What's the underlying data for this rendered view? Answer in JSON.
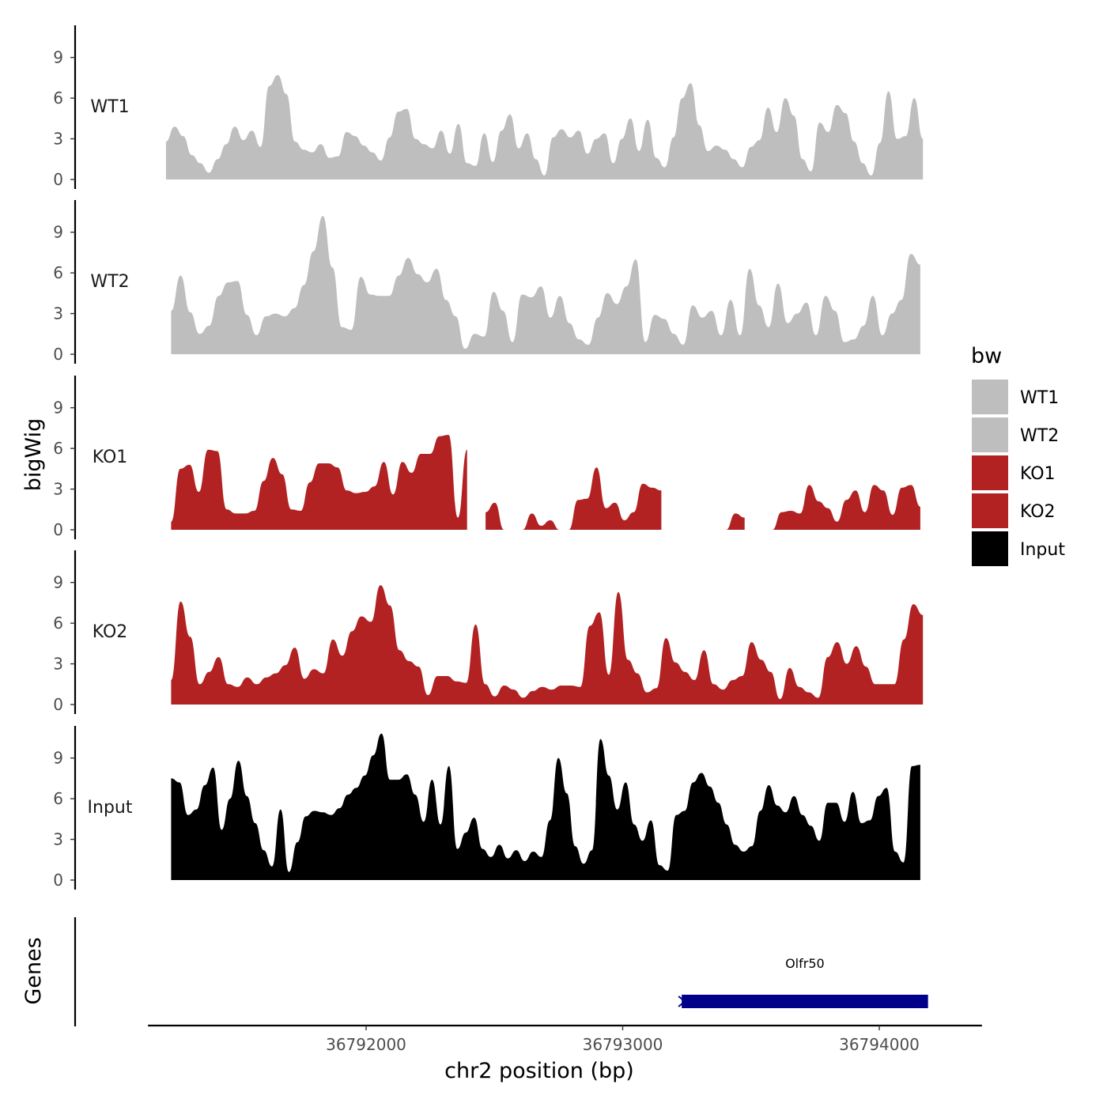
{
  "chart_data": {
    "type": "area",
    "x_axis": {
      "label": "chr2 position (bp)",
      "range": [
        36791150,
        36794400
      ],
      "ticks": [
        {
          "value": 36792000,
          "label": "36792000"
        },
        {
          "value": 36793000,
          "label": "36793000"
        },
        {
          "value": 36794000,
          "label": "36794000"
        }
      ]
    },
    "y_axis": {
      "label": "bigWig",
      "range": [
        0,
        11.5
      ],
      "ticks": [
        {
          "value": 0,
          "label": "0"
        },
        {
          "value": 3,
          "label": "3"
        },
        {
          "value": 6,
          "label": "6"
        },
        {
          "value": 9,
          "label": "9"
        }
      ]
    },
    "genes_panel_label": "Genes",
    "legend": {
      "title": "bw",
      "items": [
        {
          "label": "WT1",
          "color": "#bebebe"
        },
        {
          "label": "WT2",
          "color": "#bebebe"
        },
        {
          "label": "KO1",
          "color": "#b22222"
        },
        {
          "label": "KO2",
          "color": "#b22222"
        },
        {
          "label": "Input",
          "color": "#000000"
        }
      ]
    },
    "series": [
      {
        "name": "WT1",
        "color": "#bebebe",
        "x_start": 36791220,
        "x_end": 36794170,
        "values": [
          2.8,
          3.9,
          3.2,
          1.8,
          1.2,
          0.5,
          1.5,
          2.6,
          3.9,
          2.9,
          3.6,
          2.4,
          6.9,
          7.7,
          6.3,
          2.8,
          2.2,
          2.0,
          2.6,
          1.6,
          1.7,
          3.5,
          3.2,
          2.5,
          2.0,
          1.4,
          3.1,
          5.0,
          5.2,
          3.0,
          2.6,
          2.3,
          3.6,
          1.9,
          4.1,
          1.2,
          1.0,
          3.4,
          1.3,
          3.6,
          4.8,
          2.3,
          3.4,
          1.5,
          0.3,
          3.1,
          3.7,
          3.1,
          3.6,
          1.9,
          3.0,
          3.4,
          1.2,
          3.0,
          4.5,
          2.1,
          4.4,
          1.6,
          0.9,
          3.1,
          6.0,
          7.1,
          4.0,
          2.1,
          2.5,
          2.2,
          1.5,
          0.9,
          2.4,
          2.9,
          5.3,
          3.5,
          6.0,
          4.7,
          1.5,
          0.6,
          4.2,
          3.5,
          5.5,
          4.9,
          2.8,
          1.2,
          0.3,
          2.7,
          6.5,
          3.0,
          3.2,
          6.0,
          3.0
        ],
        "gaps": []
      },
      {
        "name": "WT2",
        "color": "#bebebe",
        "x_start": 36791240,
        "x_end": 36794160,
        "values": [
          3.2,
          5.8,
          3.1,
          1.5,
          2.1,
          4.3,
          5.3,
          5.4,
          2.9,
          1.4,
          2.8,
          3.0,
          2.8,
          3.4,
          5.1,
          7.6,
          10.2,
          6.4,
          2.0,
          1.8,
          5.7,
          4.4,
          4.3,
          4.3,
          5.8,
          7.1,
          5.9,
          5.3,
          6.3,
          4.0,
          2.8,
          0.4,
          1.5,
          1.3,
          4.6,
          3.2,
          0.9,
          4.4,
          4.2,
          5.0,
          2.7,
          4.3,
          2.3,
          1.1,
          0.7,
          2.7,
          4.5,
          3.7,
          5.0,
          7.0,
          0.9,
          2.9,
          2.6,
          1.5,
          0.7,
          3.6,
          2.7,
          3.2,
          1.4,
          4.0,
          1.4,
          6.3,
          3.6,
          2.0,
          5.2,
          2.3,
          3.0,
          3.8,
          1.4,
          4.3,
          3.2,
          0.9,
          1.1,
          2.1,
          4.3,
          1.4,
          3.0,
          4.0,
          7.4,
          6.6
        ]
      },
      {
        "name": "KO1",
        "color": "#b22222",
        "x_start": 36791240,
        "x_end": 36794160,
        "values": [
          0.6,
          4.5,
          4.8,
          2.8,
          5.9,
          5.8,
          1.5,
          1.2,
          1.2,
          1.4,
          3.6,
          5.3,
          4.1,
          1.5,
          1.4,
          3.5,
          4.9,
          4.9,
          4.6,
          2.9,
          2.7,
          2.8,
          3.2,
          5.0,
          2.6,
          5.0,
          4.2,
          5.6,
          5.6,
          6.9,
          7.0,
          0.9,
          5.9,
          4.3,
          1.3,
          2.0,
          0.0,
          0.0,
          0.0,
          1.2,
          0.3,
          0.7,
          0.0,
          0.0,
          2.2,
          2.3,
          4.6,
          1.6,
          2.0,
          0.7,
          1.3,
          3.4,
          3.1,
          2.9,
          3.0,
          1.5,
          2.8,
          0.0,
          0.0,
          0.0,
          0.0,
          1.2,
          0.9,
          1.4,
          0.0,
          0.0,
          1.3,
          1.4,
          1.2,
          3.3,
          2.1,
          1.6,
          0.6,
          2.2,
          2.9,
          1.3,
          3.3,
          2.9,
          1.1,
          3.1,
          3.3,
          1.7
        ],
        "gaps": [
          [
            36792420,
            36792460
          ],
          [
            36792550,
            36792590
          ],
          [
            36793180,
            36793320
          ],
          [
            36793490,
            36793550
          ]
        ]
      },
      {
        "name": "KO2",
        "color": "#b22222",
        "x_start": 36791240,
        "x_end": 36794170,
        "values": [
          1.8,
          7.6,
          5.0,
          1.5,
          2.4,
          3.5,
          1.5,
          1.3,
          2.0,
          1.5,
          2.0,
          2.3,
          2.9,
          4.2,
          1.9,
          2.6,
          2.3,
          4.8,
          3.6,
          5.4,
          6.5,
          6.1,
          8.8,
          7.3,
          4.0,
          3.2,
          2.8,
          0.7,
          2.1,
          2.1,
          1.7,
          1.6,
          5.9,
          1.5,
          0.6,
          1.4,
          1.1,
          0.5,
          1.0,
          1.3,
          1.1,
          1.4,
          1.4,
          1.3,
          5.8,
          6.8,
          2.2,
          8.3,
          3.3,
          2.3,
          0.9,
          1.2,
          4.9,
          3.1,
          2.4,
          1.8,
          4.0,
          1.5,
          1.1,
          1.8,
          2.1,
          4.6,
          3.3,
          2.4,
          0.4,
          2.7,
          1.3,
          0.9,
          0.5,
          3.5,
          4.6,
          3.0,
          4.3,
          2.8,
          1.5,
          1.5,
          1.5,
          4.8,
          7.4,
          6.6
        ]
      },
      {
        "name": "Input",
        "color": "#000000",
        "x_start": 36791240,
        "x_end": 36794160,
        "values": [
          7.5,
          7.2,
          4.8,
          5.2,
          7.0,
          8.3,
          3.7,
          6.0,
          8.8,
          6.2,
          4.2,
          2.2,
          1.0,
          5.2,
          0.6,
          2.8,
          4.7,
          5.1,
          5.0,
          4.8,
          5.3,
          6.3,
          6.8,
          7.7,
          9.2,
          10.8,
          7.4,
          7.4,
          7.8,
          6.3,
          4.3,
          7.4,
          4.1,
          8.4,
          2.3,
          3.5,
          4.6,
          2.3,
          1.7,
          2.6,
          1.6,
          2.2,
          1.4,
          2.1,
          1.7,
          4.4,
          9.0,
          6.4,
          2.5,
          1.2,
          2.2,
          10.4,
          7.7,
          5.2,
          7.2,
          4.1,
          2.9,
          4.4,
          1.1,
          0.7,
          4.8,
          5.1,
          7.2,
          7.9,
          6.9,
          5.7,
          4.1,
          2.6,
          2.1,
          2.5,
          5.1,
          7.0,
          5.5,
          5.0,
          6.2,
          4.8,
          4.0,
          2.9,
          5.7,
          5.7,
          4.3,
          6.5,
          4.2,
          4.4,
          6.2,
          6.8,
          2.1,
          1.3,
          8.4,
          8.5
        ]
      }
    ],
    "genes": [
      {
        "name": "Olfr50",
        "start": 36793230,
        "end": 36794190,
        "strand": "-",
        "color": "#00008b"
      }
    ]
  }
}
